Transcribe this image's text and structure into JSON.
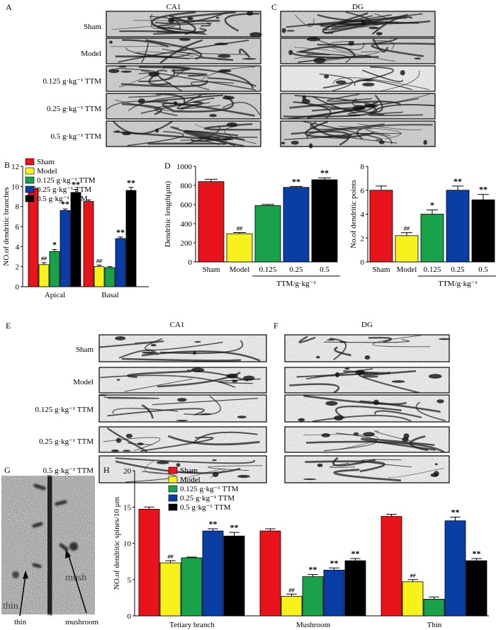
{
  "colors": {
    "Sham": "#e8141b",
    "Model": "#f7f21b",
    "0.125 g·kg-1 TTM": "#1aa24a",
    "0.25 g·kg-1 TTM": "#0a3ea6",
    "0.5 g·kg-1 TTM": "#000000"
  },
  "panelA": {
    "letter": "A",
    "rows": [
      "Sham",
      "Model",
      "0.125 g·kg⁻¹ TTM",
      "0.25 g·kg⁻¹ TTM",
      "0.5 g·kg⁻¹ TTM"
    ],
    "col1": "CA1",
    "col2": "DG",
    "col2letter": "C"
  },
  "panelE": {
    "letter": "E",
    "rows": [
      "Sham",
      "Model",
      "0.125 g·kg⁻¹ TTM",
      "0.25 g·kg⁻¹ TTM",
      "0.5 g·kg⁻¹ TTM"
    ],
    "col1": "CA1",
    "col2": "DG",
    "col2letter": "F"
  },
  "panelG": {
    "letter": "G",
    "thin_label": "thin",
    "mushroom_label": "mushroom",
    "inset_thin": "thin",
    "inset_mush": "mush"
  },
  "legend5": [
    "Sham",
    "Model",
    "0.125 g·kg⁻¹ TTM",
    "0.25 g·kg⁻¹ TTM",
    "0.5 g·kg⁻¹ TTM"
  ],
  "chart_data": [
    {
      "panel": "B",
      "type": "bar",
      "ylabel": "NO.of dendritic branches",
      "ylim": [
        0,
        12
      ],
      "yticks": [
        0,
        2,
        4,
        6,
        8,
        10,
        12
      ],
      "categories": [
        "Apical",
        "Basal"
      ],
      "series": [
        {
          "name": "Sham",
          "values": [
            9.8,
            8.5
          ],
          "errors": [
            0.15,
            0.15
          ],
          "marks": [
            "",
            ""
          ]
        },
        {
          "name": "Model",
          "values": [
            2.2,
            2.0
          ],
          "errors": [
            0.2,
            0.15
          ],
          "marks": [
            "##",
            "##"
          ]
        },
        {
          "name": "0.125 g·kg⁻¹ TTM",
          "values": [
            3.5,
            1.9
          ],
          "errors": [
            0.2,
            0.1
          ],
          "marks": [
            "*",
            ""
          ]
        },
        {
          "name": "0.25 g·kg⁻¹ TTM",
          "values": [
            7.6,
            4.8
          ],
          "errors": [
            0.15,
            0.15
          ],
          "marks": [
            "**",
            "**"
          ]
        },
        {
          "name": "0.5 g·kg⁻¹ TTM",
          "values": [
            9.4,
            9.6
          ],
          "errors": [
            0.3,
            0.3
          ],
          "marks": [
            "**",
            "**"
          ]
        }
      ],
      "legend": "top-left"
    },
    {
      "panel": "D",
      "type": "bar",
      "ylabel": "Dendritic length(μm)",
      "ylim": [
        0,
        1000
      ],
      "yticks": [
        0,
        200,
        400,
        600,
        800,
        1000
      ],
      "categories": [
        "Sham",
        "Model",
        "0.125",
        "0.25",
        "0.5"
      ],
      "values": [
        840,
        295,
        590,
        780,
        860
      ],
      "errors": [
        25,
        12,
        12,
        10,
        20
      ],
      "marks": [
        "",
        "##",
        "",
        "**",
        "**"
      ],
      "xgroup_label": "TTM/g·kg⁻¹"
    },
    {
      "panel": "D2",
      "type": "bar",
      "ylabel": "No.of dendritic points",
      "ylim": [
        0,
        8
      ],
      "yticks": [
        0,
        2,
        4,
        6,
        8
      ],
      "categories": [
        "Sham",
        "Model",
        "0.125",
        "0.25",
        "0.5"
      ],
      "values": [
        6.0,
        2.2,
        4.0,
        6.0,
        5.2
      ],
      "errors": [
        0.35,
        0.25,
        0.35,
        0.35,
        0.45
      ],
      "marks": [
        "",
        "##",
        "*",
        "**",
        "**"
      ],
      "xgroup_label": "TTM/g·kg⁻¹"
    },
    {
      "panel": "H",
      "type": "bar",
      "ylabel": "NO.of dendritic spines/10 μm",
      "ylim": [
        0,
        20
      ],
      "yticks": [
        0,
        5,
        10,
        15,
        20
      ],
      "categories": [
        "Tetiary branch",
        "Mushroom",
        "Thin"
      ],
      "series": [
        {
          "name": "Sham",
          "values": [
            14.7,
            11.7,
            13.7
          ],
          "errors": [
            0.3,
            0.3,
            0.3
          ],
          "marks": [
            "",
            "",
            ""
          ]
        },
        {
          "name": "Model",
          "values": [
            7.3,
            2.7,
            4.7
          ],
          "errors": [
            0.3,
            0.3,
            0.3
          ],
          "marks": [
            "##",
            "##",
            "##"
          ]
        },
        {
          "name": "0.125 g·kg⁻¹ TTM",
          "values": [
            8.0,
            5.4,
            2.3
          ],
          "errors": [
            0.1,
            0.3,
            0.3
          ],
          "marks": [
            "",
            "**",
            ""
          ]
        },
        {
          "name": "0.25 g·kg⁻¹ TTM",
          "values": [
            11.7,
            6.3,
            13.1
          ],
          "errors": [
            0.3,
            0.3,
            0.5
          ],
          "marks": [
            "**",
            "**",
            "**"
          ]
        },
        {
          "name": "0.5 g·kg⁻¹ TTM",
          "values": [
            11.0,
            7.6,
            7.6
          ],
          "errors": [
            0.5,
            0.3,
            0.3
          ],
          "marks": [
            "**",
            "**",
            "**"
          ]
        }
      ],
      "legend": "top-left"
    }
  ]
}
